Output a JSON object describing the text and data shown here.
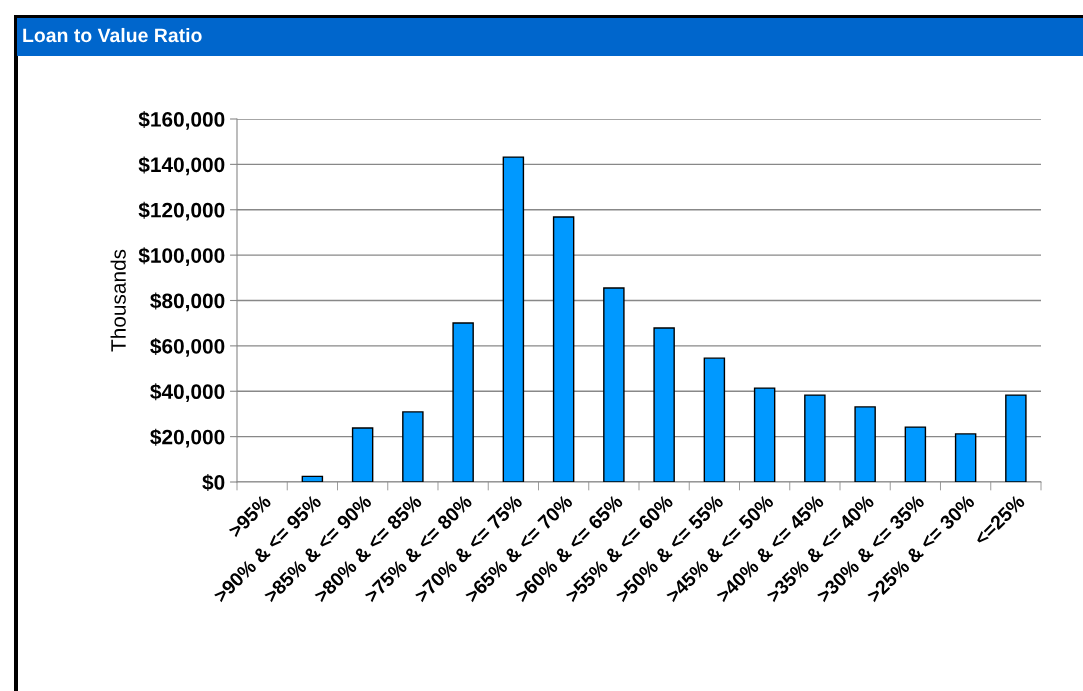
{
  "chart_data": {
    "type": "bar",
    "title": "Loan to Value Ratio",
    "ylabel": "Thousands",
    "categories": [
      ">95%",
      ">90% & <= 95%",
      ">85% & <= 90%",
      ">80% & <= 85%",
      ">75% & <= 80%",
      ">70% & <= 75%",
      ">65% & <= 70%",
      ">60% & <= 65%",
      ">55% & <= 60%",
      ">50% & <= 55%",
      ">45% & <= 50%",
      ">40% & <= 45%",
      ">35% & <= 40%",
      ">30% & <= 35%",
      ">25% & <= 30%",
      "<=25%"
    ],
    "values": [
      0,
      2500,
      23800,
      30900,
      70100,
      143200,
      116800,
      85500,
      67900,
      54600,
      41400,
      38300,
      33100,
      24200,
      21200,
      38300
    ],
    "color": "#0099ff",
    "ylim": [
      0,
      160000
    ],
    "yticks": [
      {
        "value": 0,
        "label": "$0"
      },
      {
        "value": 20000,
        "label": "$20,000"
      },
      {
        "value": 40000,
        "label": "$40,000"
      },
      {
        "value": 60000,
        "label": "$60,000"
      },
      {
        "value": 80000,
        "label": "$80,000"
      },
      {
        "value": 100000,
        "label": "$100,000"
      },
      {
        "value": 120000,
        "label": "$120,000"
      },
      {
        "value": 140000,
        "label": "$140,000"
      },
      {
        "value": 160000,
        "label": "$160,000"
      }
    ],
    "grid": "y",
    "legend": false
  }
}
